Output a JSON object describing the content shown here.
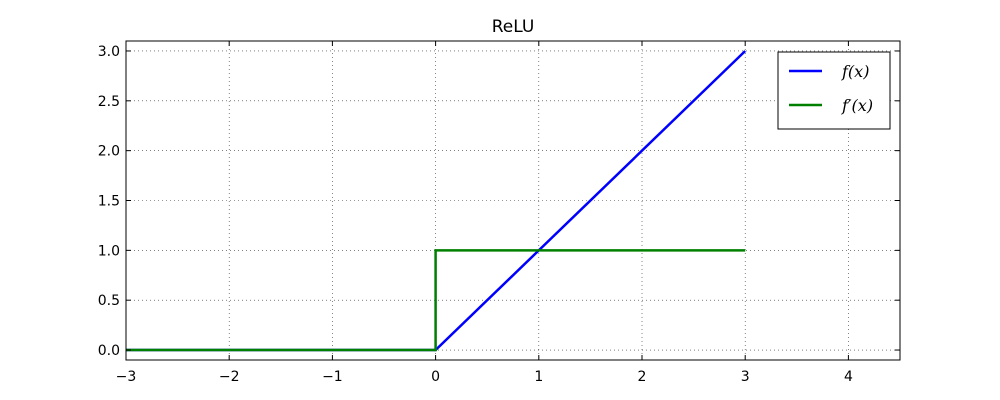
{
  "chart_data": {
    "type": "line",
    "title": "ReLU",
    "xlabel": "",
    "ylabel": "",
    "xlim": [
      -3,
      4.5
    ],
    "ylim": [
      -0.1,
      3.1
    ],
    "xticks": [
      -3,
      -2,
      -1,
      0,
      1,
      2,
      3,
      4
    ],
    "xtick_labels": [
      "−3",
      "−2",
      "−1",
      "0",
      "1",
      "2",
      "3",
      "4"
    ],
    "yticks": [
      0.0,
      0.5,
      1.0,
      1.5,
      2.0,
      2.5,
      3.0
    ],
    "ytick_labels": [
      "0.0",
      "0.5",
      "1.0",
      "1.5",
      "2.0",
      "2.5",
      "3.0"
    ],
    "grid": true,
    "legend_position": "top-right",
    "series": [
      {
        "name": "f(x)",
        "color": "#0000ff",
        "x": [
          -3,
          0,
          3
        ],
        "y": [
          0,
          0,
          3
        ]
      },
      {
        "name": "f′(x)",
        "color": "#008000",
        "x": [
          -3,
          0,
          0,
          3
        ],
        "y": [
          0,
          0,
          1,
          1
        ]
      }
    ]
  }
}
